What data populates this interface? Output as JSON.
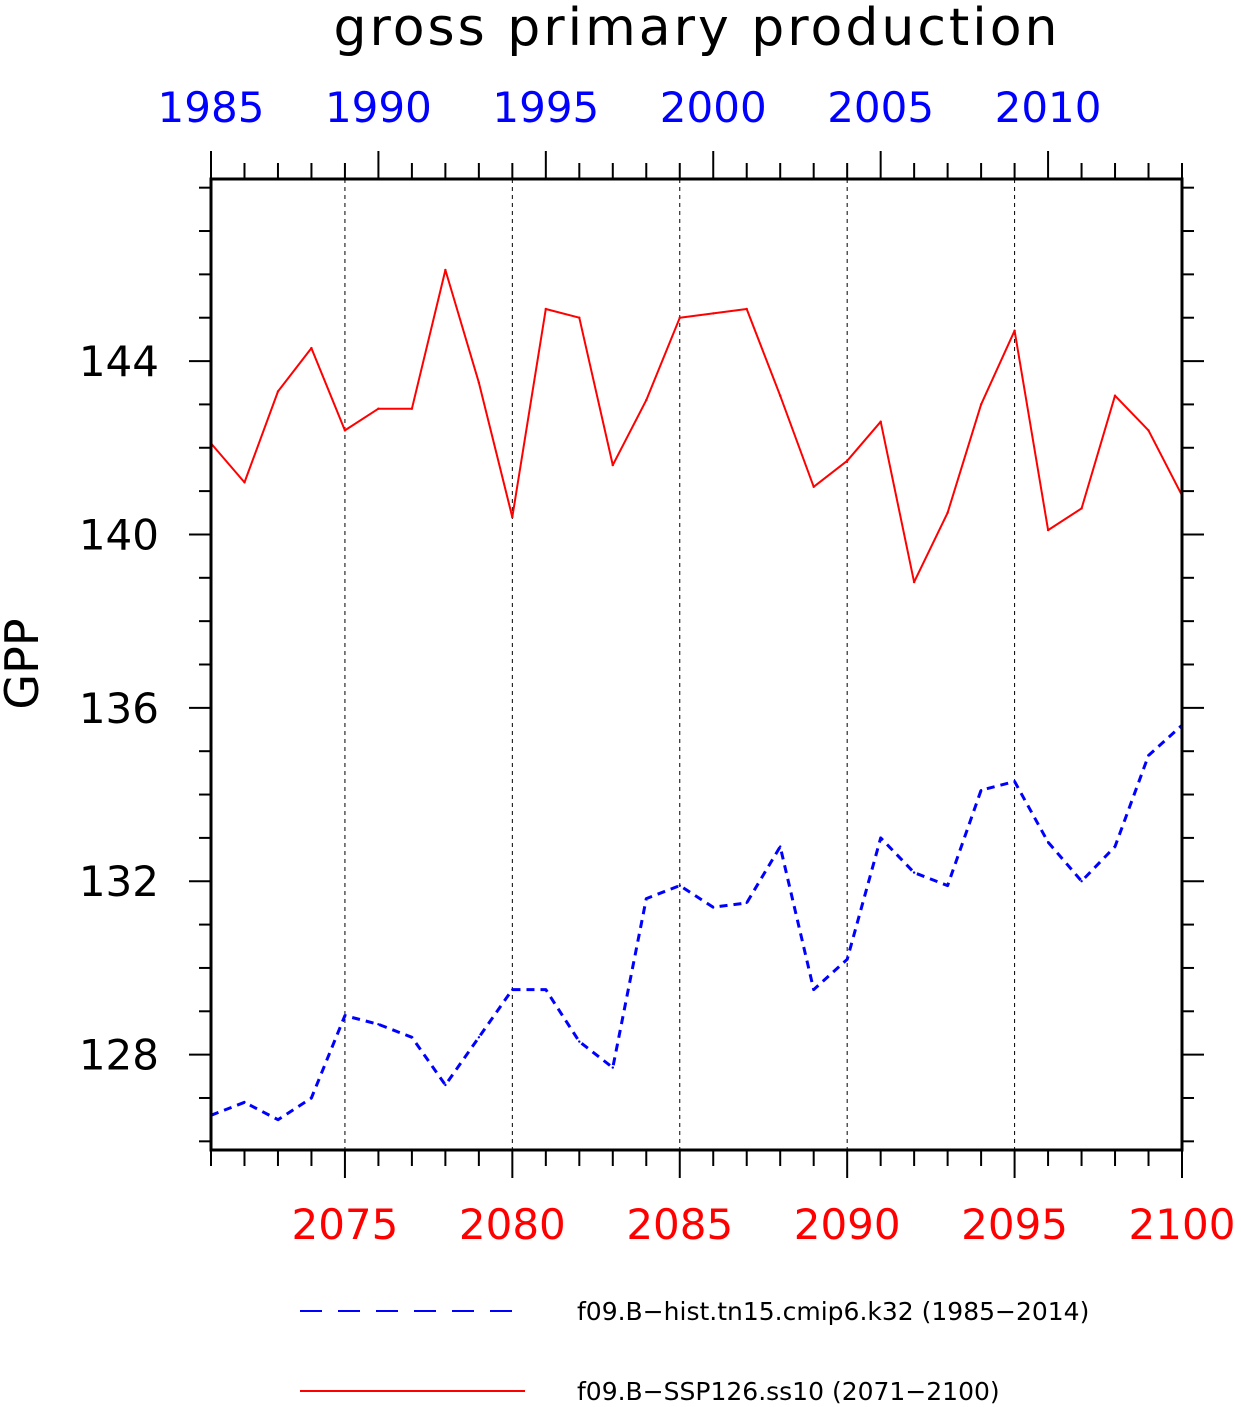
{
  "chart_data": {
    "type": "line",
    "title": "gross primary production",
    "ylabel": "GPP",
    "ylim": [
      125.8,
      148.2
    ],
    "yticks": [
      128,
      132,
      136,
      140,
      144
    ],
    "y_minor_step": 1,
    "x_bottom": {
      "range": [
        2071,
        2100
      ],
      "ticks": [
        2075,
        2080,
        2085,
        2090,
        2095,
        2100
      ],
      "color": "#ff0000"
    },
    "x_top": {
      "range": [
        1985,
        2014
      ],
      "ticks": [
        1985,
        1990,
        1995,
        2000,
        2005,
        2010
      ],
      "color": "#0000ff"
    },
    "gridlines": "vertical dashed at major bottom ticks",
    "legend_position": "bottom",
    "series": [
      {
        "name": "f09.B−hist.tn15.cmip6.k32 (1985−2014)",
        "axis": "top",
        "color": "#0000ff",
        "dash": "dashed",
        "x": [
          1985,
          1986,
          1987,
          1988,
          1989,
          1990,
          1991,
          1992,
          1993,
          1994,
          1995,
          1996,
          1997,
          1998,
          1999,
          2000,
          2001,
          2002,
          2003,
          2004,
          2005,
          2006,
          2007,
          2008,
          2009,
          2010,
          2011,
          2012,
          2013,
          2014
        ],
        "values": [
          126.6,
          126.9,
          126.5,
          127.0,
          128.9,
          128.7,
          128.4,
          127.3,
          128.4,
          129.5,
          129.5,
          128.3,
          127.7,
          131.6,
          131.9,
          131.4,
          131.5,
          132.8,
          129.5,
          130.2,
          133.0,
          132.2,
          131.9,
          134.1,
          134.3,
          132.9,
          132.0,
          132.8,
          134.9,
          135.6
        ]
      },
      {
        "name": "f09.B−SSP126.ss10 (2071−2100)",
        "axis": "bottom",
        "color": "#ff0000",
        "dash": "solid",
        "x": [
          2071,
          2072,
          2073,
          2074,
          2075,
          2076,
          2077,
          2078,
          2079,
          2080,
          2081,
          2082,
          2083,
          2084,
          2085,
          2086,
          2087,
          2088,
          2089,
          2090,
          2091,
          2092,
          2093,
          2094,
          2095,
          2096,
          2097,
          2098,
          2099,
          2100
        ],
        "values": [
          142.1,
          141.2,
          143.3,
          144.3,
          142.4,
          142.9,
          142.9,
          146.1,
          143.5,
          140.4,
          145.2,
          145.0,
          141.6,
          143.1,
          145.0,
          145.1,
          145.2,
          143.2,
          141.1,
          141.7,
          142.6,
          138.9,
          140.5,
          143.0,
          144.7,
          140.1,
          140.6,
          143.2,
          142.4,
          140.9
        ]
      }
    ]
  }
}
